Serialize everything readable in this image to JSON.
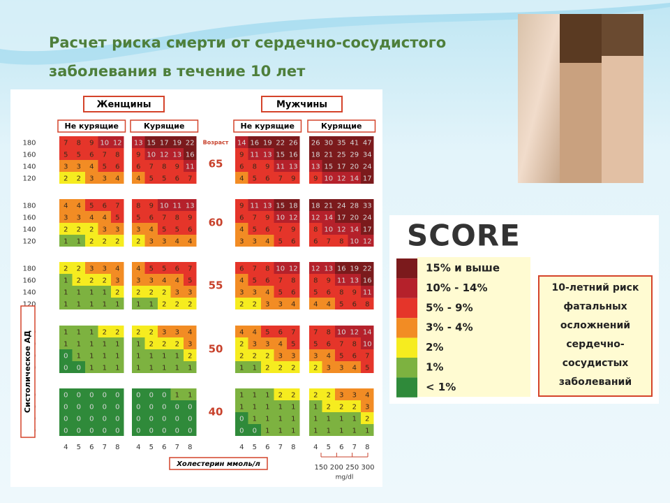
{
  "title": [
    "Расчет риска смерти от сердечно-сосудистого",
    "заболевания в течение 10 лет"
  ],
  "chart_data": {
    "type": "heatmap",
    "sexes": [
      "Женщины",
      "Мужчины"
    ],
    "smoking": [
      "Не курящие",
      "Курящие"
    ],
    "age_label": "Возраст",
    "ages": [
      65,
      60,
      55,
      50,
      40
    ],
    "sbp": [
      180,
      160,
      140,
      120
    ],
    "cholesterol": [
      4,
      5,
      6,
      7,
      8
    ],
    "y_label": "Систолическое АД",
    "x_label": "Холестерин ммоль/л",
    "mgdl_ticks": [
      150,
      200,
      250,
      300
    ],
    "mgdl_label": "mg/dl",
    "panels": [
      {
        "values": [
          [
            [
              7,
              8,
              9,
              10,
              12
            ],
            [
              5,
              5,
              6,
              7,
              8
            ],
            [
              3,
              3,
              4,
              5,
              6
            ],
            [
              2,
              2,
              3,
              3,
              4
            ]
          ],
          [
            [
              4,
              4,
              5,
              6,
              7
            ],
            [
              3,
              3,
              4,
              4,
              5
            ],
            [
              2,
              2,
              2,
              3,
              3
            ],
            [
              1,
              1,
              2,
              2,
              2
            ]
          ],
          [
            [
              2,
              2,
              3,
              3,
              4
            ],
            [
              1,
              2,
              2,
              2,
              3
            ],
            [
              1,
              1,
              1,
              1,
              2
            ],
            [
              1,
              1,
              1,
              1,
              1
            ]
          ],
          [
            [
              1,
              1,
              1,
              2,
              2
            ],
            [
              1,
              1,
              1,
              1,
              1
            ],
            [
              0,
              1,
              1,
              1,
              1
            ],
            [
              0,
              0,
              1,
              1,
              1
            ]
          ],
          [
            [
              0,
              0,
              0,
              0,
              0
            ],
            [
              0,
              0,
              0,
              0,
              0
            ],
            [
              0,
              0,
              0,
              0,
              0
            ],
            [
              0,
              0,
              0,
              0,
              0
            ]
          ]
        ]
      },
      {
        "values": [
          [
            [
              13,
              15,
              17,
              19,
              22
            ],
            [
              9,
              10,
              12,
              13,
              16
            ],
            [
              6,
              7,
              8,
              9,
              11
            ],
            [
              4,
              5,
              5,
              6,
              7
            ]
          ],
          [
            [
              8,
              9,
              10,
              11,
              13
            ],
            [
              5,
              6,
              7,
              8,
              9
            ],
            [
              3,
              4,
              5,
              5,
              6
            ],
            [
              2,
              3,
              3,
              4,
              4
            ]
          ],
          [
            [
              4,
              5,
              5,
              6,
              7
            ],
            [
              3,
              3,
              4,
              4,
              5
            ],
            [
              2,
              2,
              2,
              3,
              3
            ],
            [
              1,
              1,
              2,
              2,
              2
            ]
          ],
          [
            [
              2,
              2,
              3,
              3,
              4
            ],
            [
              1,
              2,
              2,
              2,
              3
            ],
            [
              1,
              1,
              1,
              1,
              2
            ],
            [
              1,
              1,
              1,
              1,
              1
            ]
          ],
          [
            [
              0,
              0,
              0,
              1,
              1
            ],
            [
              0,
              0,
              0,
              0,
              0
            ],
            [
              0,
              0,
              0,
              0,
              0
            ],
            [
              0,
              0,
              0,
              0,
              0
            ]
          ]
        ]
      },
      {
        "values": [
          [
            [
              14,
              16,
              19,
              22,
              26
            ],
            [
              9,
              11,
              13,
              15,
              16
            ],
            [
              6,
              8,
              9,
              11,
              13
            ],
            [
              4,
              5,
              6,
              7,
              9
            ]
          ],
          [
            [
              9,
              11,
              13,
              15,
              18
            ],
            [
              6,
              7,
              9,
              10,
              12
            ],
            [
              4,
              5,
              6,
              7,
              9
            ],
            [
              3,
              3,
              4,
              5,
              6
            ]
          ],
          [
            [
              6,
              7,
              8,
              10,
              12
            ],
            [
              4,
              5,
              6,
              7,
              8
            ],
            [
              3,
              3,
              4,
              5,
              6
            ],
            [
              2,
              2,
              3,
              3,
              4
            ]
          ],
          [
            [
              4,
              4,
              5,
              6,
              7
            ],
            [
              2,
              3,
              3,
              4,
              5
            ],
            [
              2,
              2,
              2,
              3,
              3
            ],
            [
              1,
              1,
              2,
              2,
              2
            ]
          ],
          [
            [
              1,
              1,
              1,
              2,
              2
            ],
            [
              1,
              1,
              1,
              1,
              1
            ],
            [
              0,
              1,
              1,
              1,
              1
            ],
            [
              0,
              0,
              1,
              1,
              1
            ]
          ]
        ]
      },
      {
        "values": [
          [
            [
              26,
              30,
              35,
              41,
              47
            ],
            [
              18,
              21,
              25,
              29,
              34
            ],
            [
              13,
              15,
              17,
              20,
              24
            ],
            [
              9,
              10,
              12,
              14,
              17
            ]
          ],
          [
            [
              18,
              21,
              24,
              28,
              33
            ],
            [
              12,
              14,
              17,
              20,
              24
            ],
            [
              8,
              10,
              12,
              14,
              17
            ],
            [
              6,
              7,
              8,
              10,
              12
            ]
          ],
          [
            [
              12,
              13,
              16,
              19,
              22
            ],
            [
              8,
              9,
              11,
              13,
              16
            ],
            [
              5,
              6,
              8,
              9,
              11
            ],
            [
              4,
              4,
              5,
              6,
              8
            ]
          ],
          [
            [
              7,
              8,
              10,
              12,
              14
            ],
            [
              5,
              6,
              7,
              8,
              10
            ],
            [
              3,
              4,
              5,
              6,
              7
            ],
            [
              2,
              3,
              3,
              4,
              5
            ]
          ],
          [
            [
              2,
              2,
              3,
              3,
              4
            ],
            [
              1,
              2,
              2,
              2,
              3
            ],
            [
              1,
              1,
              1,
              1,
              2
            ],
            [
              1,
              1,
              1,
              1,
              1
            ]
          ]
        ]
      }
    ],
    "legend": {
      "logo": "SCORE",
      "levels": [
        {
          "label": "15% и выше",
          "color": "#7b1a1c"
        },
        {
          "label": "10% - 14%",
          "color": "#b5212b"
        },
        {
          "label": "5% - 9%",
          "color": "#e5352a"
        },
        {
          "label": "3% - 4%",
          "color": "#f28c24"
        },
        {
          "label": "2%",
          "color": "#f6ec1f"
        },
        {
          "label": "1%",
          "color": "#7db240"
        },
        {
          "label": "< 1%",
          "color": "#2f8a3a"
        }
      ],
      "description": [
        "10-летний риск",
        "фатальных",
        "осложнений",
        "сердечно-",
        "сосудистых",
        "заболеваний"
      ]
    }
  }
}
